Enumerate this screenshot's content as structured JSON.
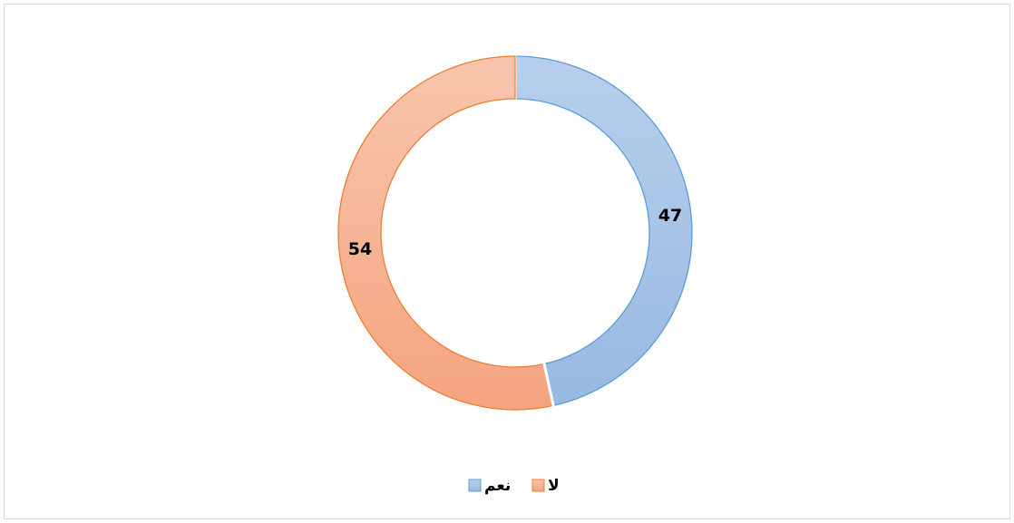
{
  "chart_data": {
    "type": "donut",
    "categories": [
      "نعم",
      "لا"
    ],
    "values": [
      47,
      54
    ],
    "colors": [
      "#5b9bd5",
      "#ed7d31"
    ],
    "legend": "bottom"
  }
}
